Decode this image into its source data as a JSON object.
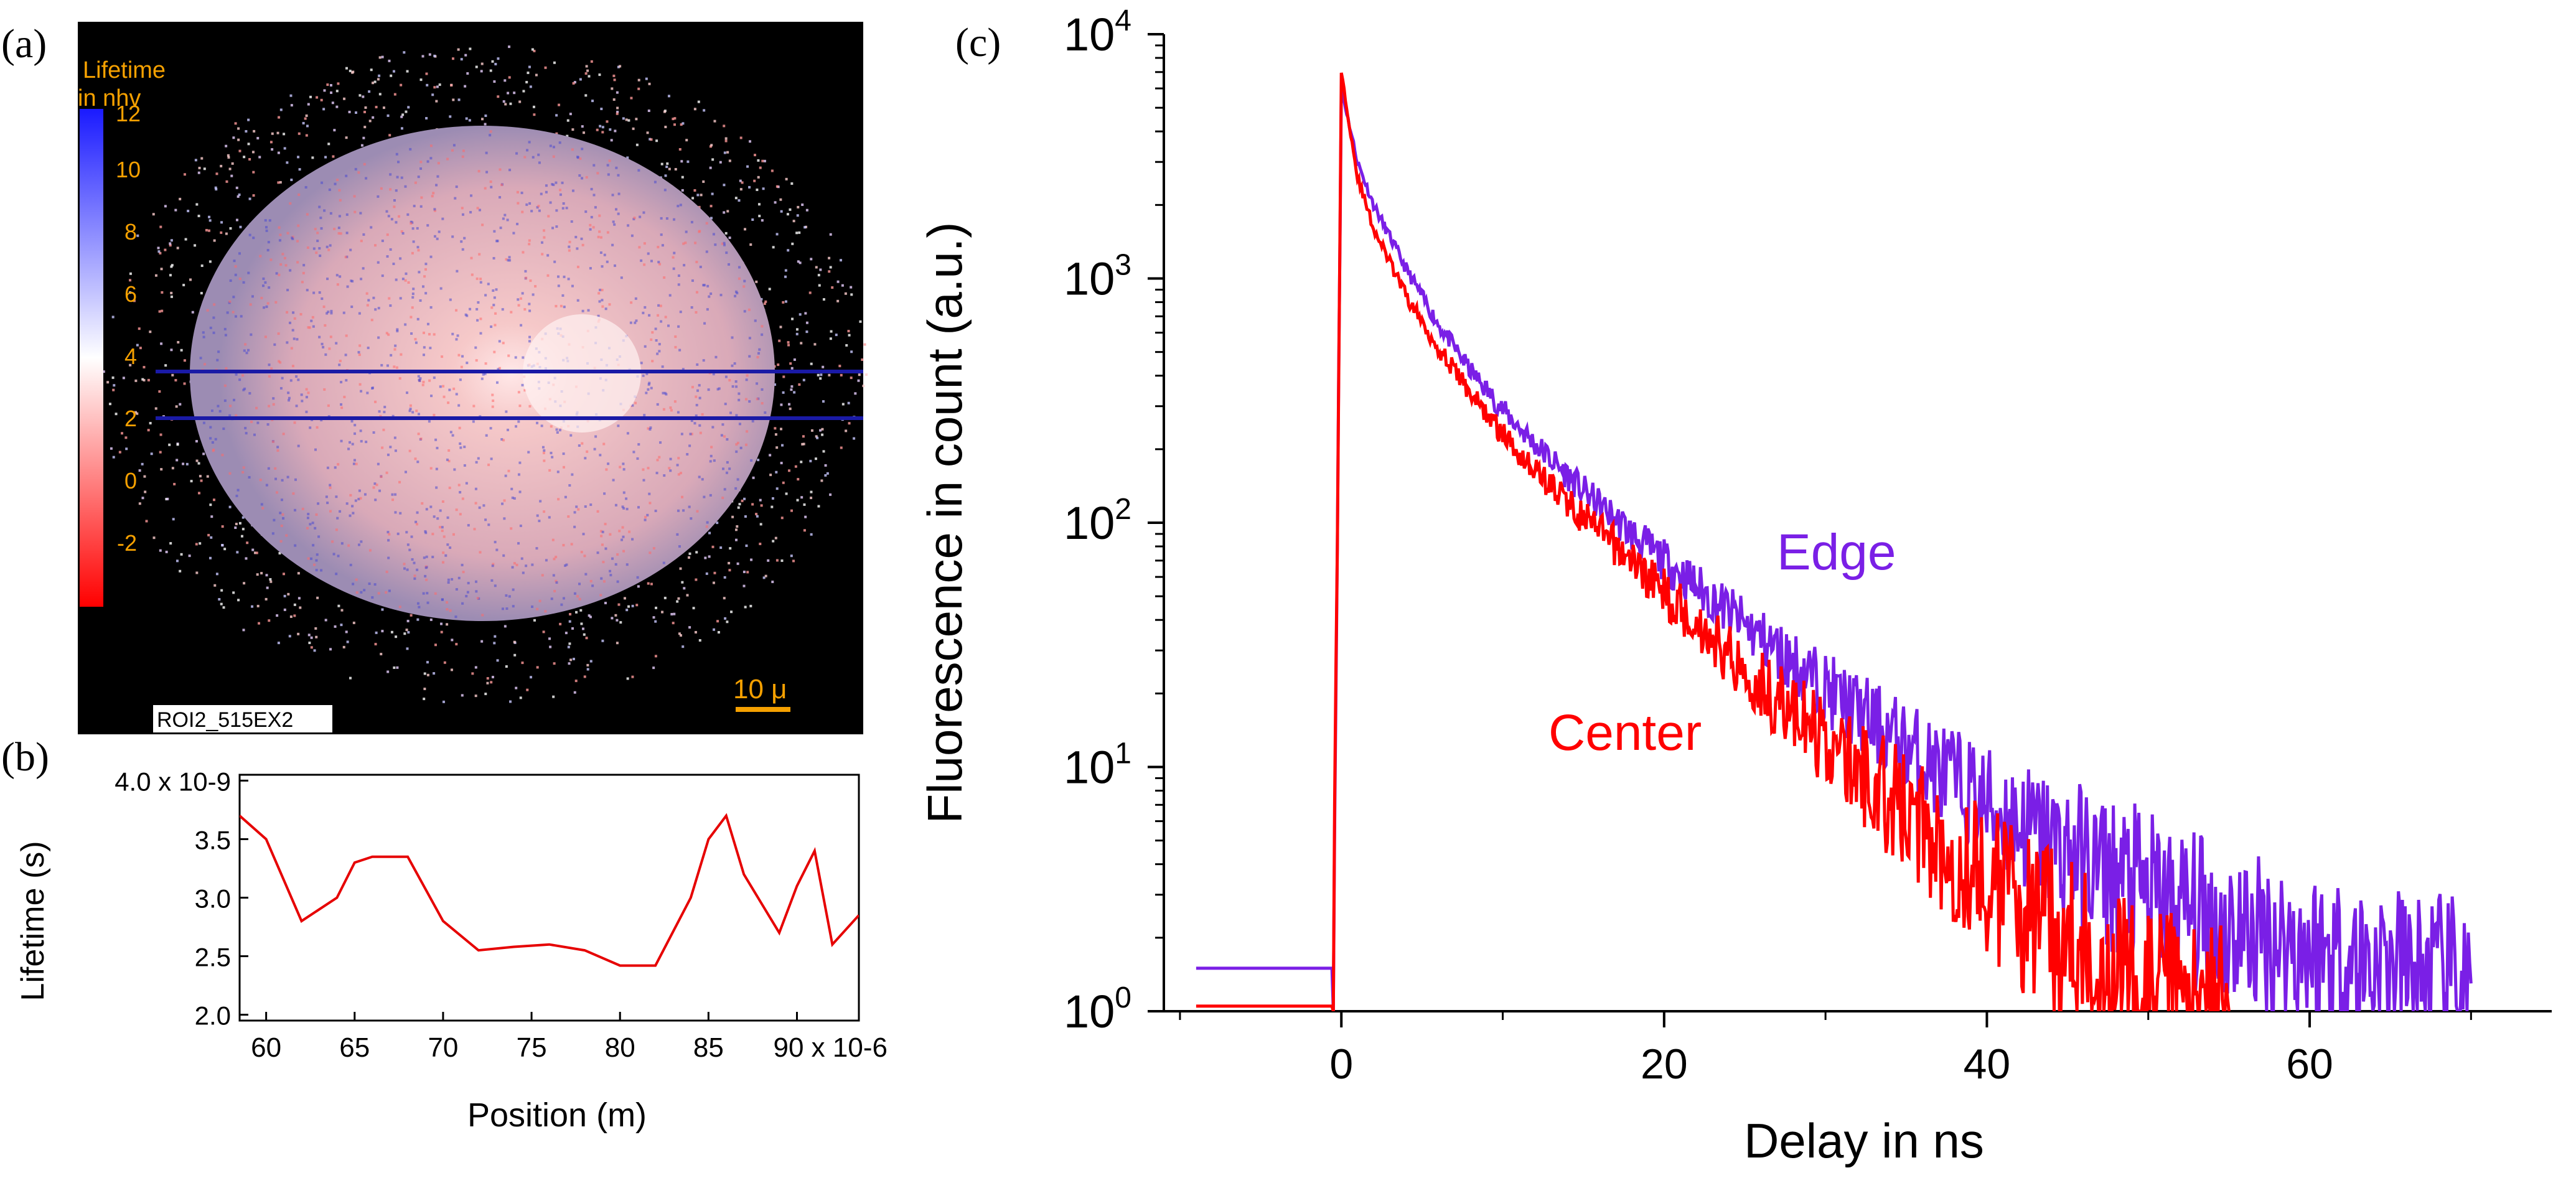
{
  "panels": {
    "a": {
      "label": "(a)",
      "colorbar_title": [
        "Lifetime",
        "in nhv"
      ],
      "colorbar_ticks": [
        "12",
        "10",
        "8",
        "6",
        "4",
        "2",
        "0",
        "-2"
      ],
      "roi_label": "ROI2_515EX2",
      "scalebar_label": "10 μ",
      "colors": {
        "background": "#000000",
        "accent": "#f5a000",
        "line": "#1a1aa6"
      }
    },
    "b": {
      "label": "(b)",
      "ylabel": "Lifetime (s)",
      "xlabel": "Position (m)",
      "y_ticks": [
        "4.0 x 10-9",
        "3.5",
        "3.0",
        "2.5",
        "2.0"
      ],
      "x_ticks": [
        "60",
        "65",
        "70",
        "75",
        "80",
        "85",
        "90 x 10-6"
      ]
    },
    "c": {
      "label": "(c)",
      "ylabel": "Fluorescence in count (a.u.)",
      "xlabel": "Delay in ns",
      "x_ticks": [
        "0",
        "20",
        "40",
        "60"
      ],
      "y_ticks": [
        "10^0",
        "10^1",
        "10^2",
        "10^3",
        "10^4"
      ],
      "annotations": [
        "Edge",
        "Center"
      ]
    }
  },
  "chart_data": [
    {
      "type": "line",
      "panel": "b",
      "xlabel": "Position (m)",
      "ylabel": "Lifetime (s)",
      "xlim": [
        5.85e-05,
        9.35e-05
      ],
      "ylim": [
        1.95e-09,
        4.05e-09
      ],
      "x": [
        5.85e-05,
        6e-05,
        6.2e-05,
        6.4e-05,
        6.5e-05,
        6.6e-05,
        6.8e-05,
        7e-05,
        7.2e-05,
        7.4e-05,
        7.6e-05,
        7.8e-05,
        8e-05,
        8.2e-05,
        8.4e-05,
        8.5e-05,
        8.6e-05,
        8.7e-05,
        8.8e-05,
        8.9e-05,
        9e-05,
        9.1e-05,
        9.2e-05,
        9.35e-05
      ],
      "series": [
        {
          "color": "#e60000",
          "values": [
            3.7e-09,
            3.5e-09,
            2.8e-09,
            3e-09,
            3.3e-09,
            3.35e-09,
            3.35e-09,
            2.8e-09,
            2.55e-09,
            2.58e-09,
            2.6e-09,
            2.55e-09,
            2.42e-09,
            2.42e-09,
            3e-09,
            3.5e-09,
            3.7e-09,
            3.2e-09,
            2.95e-09,
            2.7e-09,
            3.1e-09,
            3.4e-09,
            2.6e-09,
            2.85e-09
          ]
        }
      ]
    },
    {
      "type": "line",
      "panel": "c",
      "xlabel": "Delay in ns",
      "ylabel": "Fluorescence in count (a.u.)",
      "xlim": [
        -11,
        75
      ],
      "ylim": [
        1,
        10000
      ],
      "yscale": "log",
      "series": [
        {
          "name": "Edge",
          "color": "#7a1fe6",
          "x": [
            -9,
            -1,
            -0.5,
            0,
            1,
            2,
            4,
            6,
            8,
            10,
            12,
            15,
            18,
            20,
            25,
            30,
            35,
            40,
            45,
            50,
            55,
            60,
            65,
            70
          ],
          "values": [
            1.5,
            1.5,
            1.5,
            6000,
            3000,
            2000,
            1100,
            650,
            420,
            290,
            210,
            135,
            90,
            70,
            38,
            21,
            12,
            7,
            4.5,
            3,
            2.2,
            1.8,
            1.5,
            1.3
          ]
        },
        {
          "name": "Center",
          "color": "#ff0000",
          "x": [
            -9,
            -1,
            -0.5,
            0,
            1,
            2,
            4,
            6,
            8,
            10,
            12,
            15,
            18,
            20,
            25,
            30,
            35,
            40,
            45,
            50,
            55
          ],
          "values": [
            1.05,
            1.05,
            1.05,
            7000,
            2600,
            1600,
            850,
            520,
            340,
            230,
            165,
            105,
            70,
            52,
            25,
            12.5,
            6.5,
            3.4,
            1.9,
            1.2,
            1.0
          ]
        }
      ]
    }
  ]
}
